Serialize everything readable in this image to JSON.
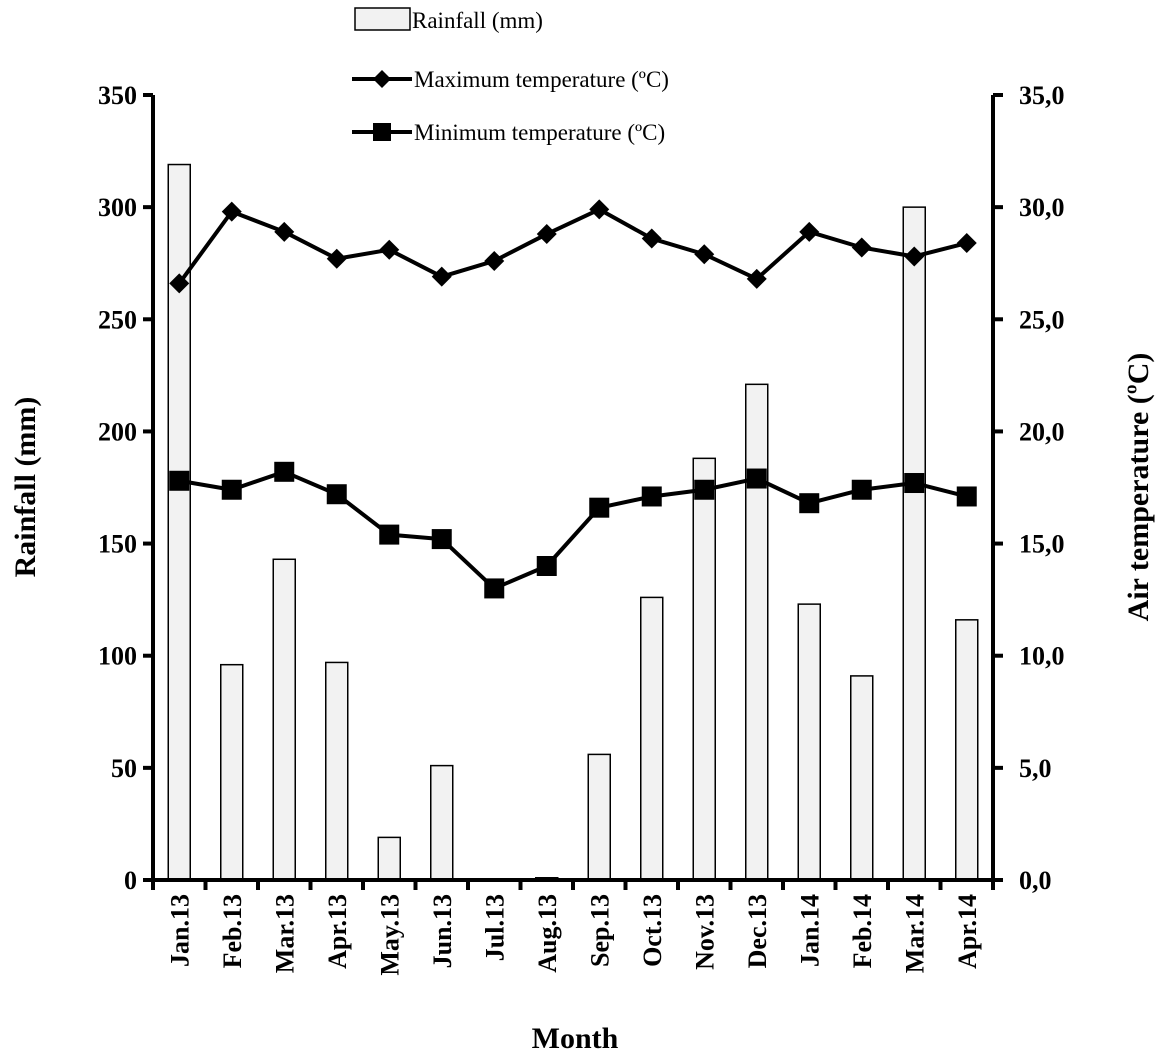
{
  "chart_data": {
    "type": "bar+line",
    "categories": [
      "Jan.13",
      "Feb.13",
      "Mar.13",
      "Apr.13",
      "May.13",
      "Jun.13",
      "Jul.13",
      "Aug.13",
      "Sep.13",
      "Oct.13",
      "Nov.13",
      "Dec.13",
      "Jan.14",
      "Feb.14",
      "Mar.14",
      "Apr.14"
    ],
    "xlabel": "Month",
    "ylabel_left": "Rainfall (mm)",
    "ylabel_right": "Air temperature (ºC)",
    "ylim_left": [
      0,
      350
    ],
    "ylim_right": [
      0,
      35
    ],
    "yticks_left": [
      "0",
      "50",
      "100",
      "150",
      "200",
      "250",
      "300",
      "350"
    ],
    "yticks_right": [
      "0,0",
      "5,0",
      "10,0",
      "15,0",
      "20,0",
      "25,0",
      "30,0",
      "35,0"
    ],
    "legend_placement": "top-center",
    "grid": false,
    "series": [
      {
        "name": "Rainfall (mm)",
        "kind": "bar",
        "axis": "left",
        "color": "#f2f2f2",
        "values": [
          319,
          96,
          143,
          97,
          19,
          51,
          0,
          1,
          56,
          126,
          188,
          221,
          123,
          91,
          300,
          116
        ]
      },
      {
        "name": "Maximum temperature  (ºC)",
        "kind": "line",
        "marker": "diamond",
        "axis": "right",
        "color": "#000000",
        "values": [
          26.6,
          29.8,
          28.9,
          27.7,
          28.1,
          26.9,
          27.6,
          28.8,
          29.9,
          28.6,
          27.9,
          26.8,
          28.9,
          28.2,
          27.8,
          28.4
        ]
      },
      {
        "name": "Minimum temperature  (ºC)",
        "kind": "line",
        "marker": "square",
        "axis": "right",
        "color": "#000000",
        "values": [
          17.8,
          17.4,
          18.2,
          17.2,
          15.4,
          15.2,
          13.0,
          14.0,
          16.6,
          17.1,
          17.4,
          17.9,
          16.8,
          17.4,
          17.7,
          17.1
        ]
      }
    ]
  }
}
